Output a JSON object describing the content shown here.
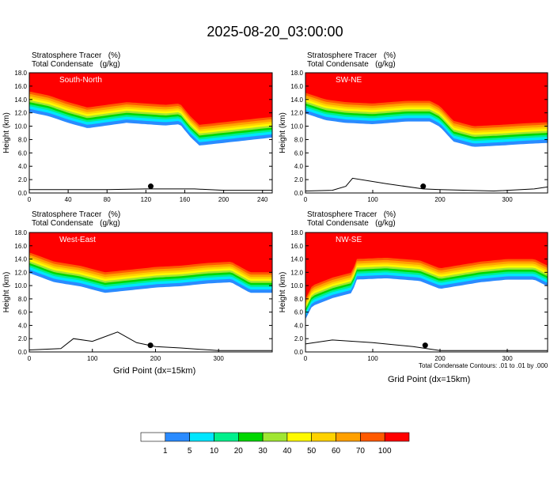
{
  "title": "2025-08-20_03:00:00",
  "colors": {
    "levels": [
      "#ffffff",
      "#2a8bff",
      "#00e6ff",
      "#00f08c",
      "#00d700",
      "#a0e632",
      "#fffa00",
      "#ffd200",
      "#ffa000",
      "#ff5a00",
      "#ff0000"
    ]
  },
  "chart_data": [
    {
      "type": "heatmap",
      "header": [
        "Stratosphere Tracer   (%)",
        "Total Condensate   (g/kg)"
      ],
      "label": "South-North",
      "ylabel": "Height (km)",
      "xlim": [
        0,
        250
      ],
      "ylim": [
        0,
        18
      ],
      "xticks": [
        "0",
        "40",
        "80",
        "120",
        "160",
        "200",
        "240"
      ],
      "yticks": [
        "0.0",
        "2.0",
        "4.0",
        "6.0",
        "8.0",
        "10.0",
        "12.0",
        "14.0",
        "16.0",
        "18.0"
      ],
      "tracer_boundary_km": [
        [
          0,
          15.2
        ],
        [
          20,
          14.6
        ],
        [
          40,
          13.6
        ],
        [
          60,
          12.8
        ],
        [
          80,
          13.2
        ],
        [
          100,
          13.6
        ],
        [
          120,
          13.4
        ],
        [
          140,
          13.2
        ],
        [
          155,
          13.4
        ],
        [
          165,
          11.6
        ],
        [
          175,
          10.2
        ],
        [
          200,
          10.6
        ],
        [
          225,
          11.0
        ],
        [
          250,
          11.4
        ]
      ],
      "terrain_km": [
        [
          0,
          0.5
        ],
        [
          80,
          0.5
        ],
        [
          120,
          0.6
        ],
        [
          170,
          0.6
        ],
        [
          200,
          0.4
        ],
        [
          250,
          0.4
        ]
      ],
      "marker": {
        "x": 125,
        "y": 1.0
      }
    },
    {
      "type": "heatmap",
      "header": [
        "Stratosphere Tracer   (%)",
        "Total Condensate   (g/kg)"
      ],
      "label": "SW-NE",
      "ylabel": "Height (km)",
      "xlim": [
        0,
        360
      ],
      "ylim": [
        0,
        18
      ],
      "xticks": [
        "0",
        "100",
        "200",
        "300"
      ],
      "yticks": [
        "0.0",
        "2.0",
        "4.0",
        "6.0",
        "8.0",
        "10.0",
        "12.0",
        "14.0",
        "16.0",
        "18.0"
      ],
      "tracer_boundary_km": [
        [
          0,
          15.0
        ],
        [
          30,
          14.0
        ],
        [
          60,
          13.6
        ],
        [
          100,
          13.4
        ],
        [
          150,
          13.8
        ],
        [
          185,
          13.8
        ],
        [
          200,
          13.0
        ],
        [
          220,
          10.8
        ],
        [
          250,
          10.0
        ],
        [
          290,
          10.2
        ],
        [
          320,
          10.4
        ],
        [
          360,
          10.6
        ]
      ],
      "terrain_km": [
        [
          0,
          0.3
        ],
        [
          40,
          0.4
        ],
        [
          60,
          1.0
        ],
        [
          70,
          2.2
        ],
        [
          120,
          1.4
        ],
        [
          175,
          0.6
        ],
        [
          200,
          0.5
        ],
        [
          280,
          0.3
        ],
        [
          340,
          0.6
        ],
        [
          360,
          0.9
        ]
      ],
      "marker": {
        "x": 175,
        "y": 1.0
      }
    },
    {
      "type": "heatmap",
      "header": [
        "Stratosphere Tracer   (%)",
        "Total Condensate   (g/kg)"
      ],
      "label": "West-East",
      "ylabel": "Height (km)",
      "xlim": [
        0,
        385
      ],
      "ylim": [
        0,
        18
      ],
      "xticks": [
        "0",
        "100",
        "200",
        "300"
      ],
      "yticks": [
        "0.0",
        "2.0",
        "4.0",
        "6.0",
        "8.0",
        "10.0",
        "12.0",
        "14.0",
        "16.0",
        "18.0"
      ],
      "tracer_boundary_km": [
        [
          0,
          15.0
        ],
        [
          40,
          13.6
        ],
        [
          80,
          13.0
        ],
        [
          120,
          12.0
        ],
        [
          160,
          12.4
        ],
        [
          200,
          12.8
        ],
        [
          240,
          13.0
        ],
        [
          280,
          13.4
        ],
        [
          320,
          13.6
        ],
        [
          350,
          12.0
        ],
        [
          385,
          12.0
        ]
      ],
      "terrain_km": [
        [
          0,
          0.3
        ],
        [
          50,
          0.5
        ],
        [
          70,
          2.0
        ],
        [
          100,
          1.6
        ],
        [
          140,
          3.0
        ],
        [
          170,
          1.4
        ],
        [
          200,
          0.8
        ],
        [
          240,
          0.6
        ],
        [
          300,
          0.2
        ],
        [
          385,
          0.2
        ]
      ],
      "marker": {
        "x": 192,
        "y": 1.0
      }
    },
    {
      "type": "heatmap",
      "header": [
        "Stratosphere Tracer   (%)",
        "Total Condensate   (g/kg)"
      ],
      "label": "NW-SE",
      "ylabel": "Height (km)",
      "xlabel": "Grid Point (dx=15km)",
      "xlim": [
        0,
        360
      ],
      "ylim": [
        0,
        18
      ],
      "xticks": [
        "0",
        "100",
        "200",
        "300"
      ],
      "yticks": [
        "0.0",
        "2.0",
        "4.0",
        "6.0",
        "8.0",
        "10.0",
        "12.0",
        "14.0",
        "16.0",
        "18.0"
      ],
      "tracer_boundary_km": [
        [
          0,
          8.0
        ],
        [
          10,
          10.0
        ],
        [
          40,
          11.2
        ],
        [
          70,
          12.0
        ],
        [
          75,
          14.0
        ],
        [
          120,
          14.2
        ],
        [
          170,
          13.8
        ],
        [
          200,
          12.6
        ],
        [
          260,
          13.6
        ],
        [
          300,
          14.0
        ],
        [
          340,
          14.0
        ],
        [
          360,
          13.0
        ]
      ],
      "terrain_km": [
        [
          0,
          1.2
        ],
        [
          40,
          1.8
        ],
        [
          100,
          1.4
        ],
        [
          160,
          0.8
        ],
        [
          200,
          0.2
        ],
        [
          360,
          0.2
        ]
      ],
      "marker": {
        "x": 178,
        "y": 1.0
      }
    }
  ],
  "xlabel_left": "Grid Point (dx=15km)",
  "contour_note": "Total Condensate Contours: .01 to .01 by .000",
  "colorbar": {
    "labels": [
      "1",
      "5",
      "10",
      "20",
      "30",
      "40",
      "50",
      "60",
      "70",
      "100"
    ]
  }
}
